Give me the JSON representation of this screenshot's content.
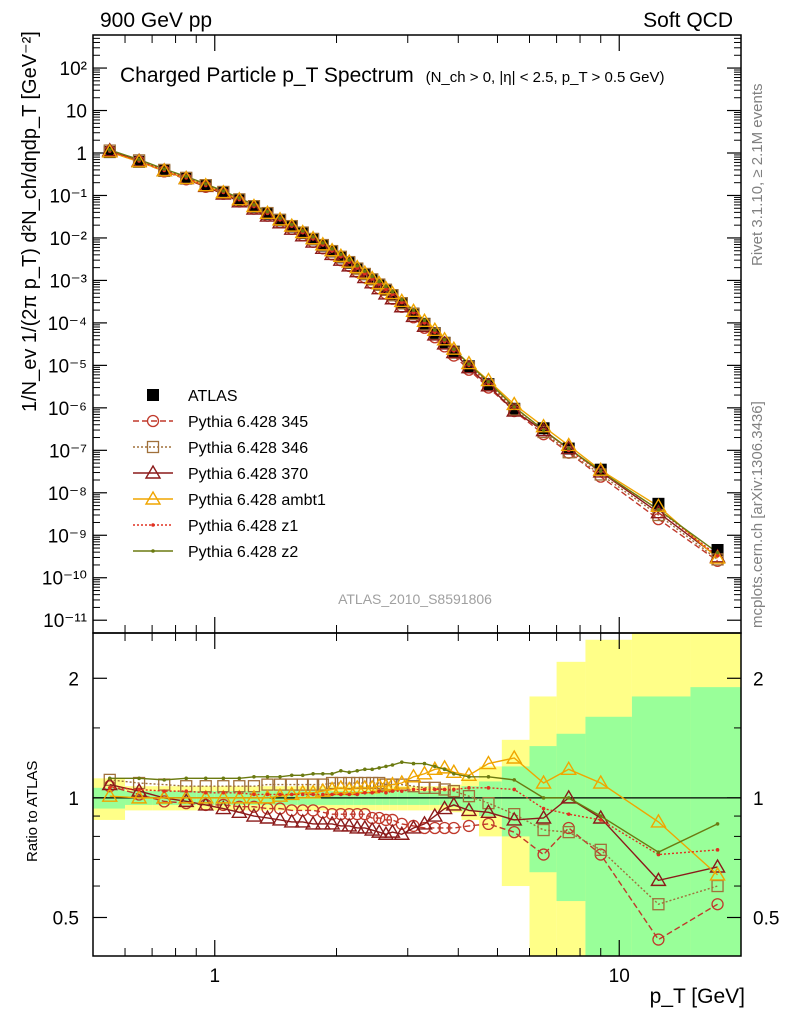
{
  "header": {
    "left": "900 GeV pp",
    "right": "Soft QCD"
  },
  "side": {
    "rivet": "Rivet 3.1.10, ≥ 2.1M events",
    "mcplots": "mcplots.cern.ch [arXiv:1306.3436]"
  },
  "analysis_tag": "ATLAS_2010_S8591806",
  "chart_data": [
    {
      "type": "scatter",
      "title": "Charged Particle p_T Spectrum",
      "subtitle": "(N_ch > 0, |η| < 2.5, p_T > 0.5 GeV)",
      "xlabel": "p_T [GeV]",
      "ylabel": "1/N_ev 1/(2π p_T) d²N_ch/dηdp_T [GeV⁻²]",
      "xscale": "log",
      "yscale": "log",
      "xlim": [
        0.5,
        20
      ],
      "ylim": [
        5e-12,
        600
      ],
      "x_tick_labels": [
        "1",
        "10"
      ],
      "y_tick_labels": [
        "10⁻¹¹",
        "10⁻¹⁰",
        "10⁻⁹",
        "10⁻⁸",
        "10⁻⁷",
        "10⁻⁶",
        "10⁻⁵",
        "10⁻⁴",
        "10⁻³",
        "10⁻²",
        "10⁻¹",
        "1",
        "10",
        "10²"
      ],
      "legend_position": "bottom-left",
      "x": [
        0.55,
        0.65,
        0.75,
        0.85,
        0.95,
        1.05,
        1.15,
        1.25,
        1.35,
        1.45,
        1.55,
        1.65,
        1.75,
        1.85,
        1.95,
        2.05,
        2.15,
        2.25,
        2.35,
        2.45,
        2.55,
        2.65,
        2.75,
        2.9,
        3.1,
        3.3,
        3.5,
        3.7,
        3.9,
        4.25,
        4.75,
        5.5,
        6.5,
        7.5,
        9.0,
        12.5,
        17.5
      ],
      "series": [
        {
          "name": "ATLAS",
          "style": "data",
          "color": "#000000",
          "values": [
            1.05,
            0.62,
            0.38,
            0.25,
            0.17,
            0.115,
            0.078,
            0.054,
            0.037,
            0.026,
            0.0185,
            0.013,
            0.0093,
            0.0066,
            0.0048,
            0.0035,
            0.0026,
            0.0019,
            0.0014,
            0.00105,
            0.00079,
            0.0006,
            0.00045,
            0.00029,
            0.000165,
            9.5e-05,
            5.7e-05,
            3.4e-05,
            2.1e-05,
            9.5e-06,
            3.6e-06,
            9.5e-07,
            3.3e-07,
            1.1e-07,
            3.5e-08,
            5.5e-09,
            4.5e-10
          ]
        },
        {
          "name": "Pythia 6.428 345",
          "style": "circle-dashed",
          "color": "#c0392b",
          "values": [
            1.1,
            0.63,
            0.37,
            0.24,
            0.16,
            0.11,
            0.072,
            0.049,
            0.0335,
            0.0233,
            0.0164,
            0.0115,
            0.0081,
            0.0057,
            0.0041,
            0.003,
            0.0022,
            0.0016,
            0.00118,
            0.00087,
            0.00065,
            0.00049,
            0.00037,
            0.00024,
            0.000136,
            7.7e-05,
            4.6e-05,
            2.8e-05,
            1.7e-05,
            7.9e-06,
            3e-06,
            8.4e-07,
            2.4e-07,
            8.8e-08,
            2.4e-08,
            2.4e-09,
            2.5e-10
          ]
        },
        {
          "name": "Pythia 6.428 346",
          "style": "square-dotted",
          "color": "#a0703a",
          "values": [
            1.14,
            0.67,
            0.4,
            0.26,
            0.175,
            0.121,
            0.081,
            0.056,
            0.0385,
            0.0268,
            0.019,
            0.0134,
            0.0095,
            0.0068,
            0.0049,
            0.0036,
            0.0027,
            0.0019,
            0.00142,
            0.00106,
            0.0008,
            0.0006,
            0.00045,
            0.00029,
            0.000163,
            9.2e-05,
            5.5e-05,
            3.3e-05,
            2e-05,
            9e-06,
            3.4e-06,
            9.1e-07,
            2.7e-07,
            9e-08,
            2.7e-08,
            3e-09,
            2.7e-10
          ]
        },
        {
          "name": "Pythia 6.428 370",
          "style": "triangle-solid",
          "color": "#8b1a1a",
          "values": [
            1.13,
            0.64,
            0.38,
            0.25,
            0.163,
            0.108,
            0.071,
            0.048,
            0.0328,
            0.0227,
            0.0161,
            0.0112,
            0.008,
            0.0057,
            0.0041,
            0.003,
            0.0022,
            0.00161,
            0.00117,
            0.00088,
            0.00064,
            0.00048,
            0.00037,
            0.00024,
            0.000142,
            8.3e-05,
            5.2e-05,
            3.2e-05,
            2e-05,
            8.8e-06,
            3.3e-06,
            8.4e-07,
            2.9e-07,
            1.1e-07,
            3.1e-08,
            3.4e-09,
            3.1e-10
          ]
        },
        {
          "name": "Pythia 6.428 ambt1",
          "style": "triangle-solid",
          "color": "#f0a500",
          "values": [
            1.06,
            0.62,
            0.38,
            0.25,
            0.17,
            0.116,
            0.079,
            0.055,
            0.038,
            0.0268,
            0.019,
            0.0134,
            0.0096,
            0.0069,
            0.005,
            0.0037,
            0.0027,
            0.002,
            0.00148,
            0.00111,
            0.00084,
            0.00064,
            0.00049,
            0.00032,
            0.000187,
            0.000109,
            6.7e-05,
            4e-05,
            2.4e-05,
            1.1e-05,
            4.4e-06,
            1.2e-06,
            3.6e-07,
            1.3e-07,
            3.4e-08,
            4.8e-09,
            2.9e-10
          ]
        },
        {
          "name": "Pythia 6.428 z1",
          "style": "dot-dotted",
          "color": "#e03020",
          "values": [
            1.11,
            0.65,
            0.39,
            0.26,
            0.172,
            0.118,
            0.08,
            0.055,
            0.038,
            0.0266,
            0.0188,
            0.0133,
            0.0095,
            0.0068,
            0.0049,
            0.0036,
            0.0027,
            0.00195,
            0.00144,
            0.00108,
            0.00082,
            0.00062,
            0.00047,
            0.0003,
            0.000173,
            0.0001,
            6e-05,
            3.6e-05,
            2.2e-05,
            1e-05,
            3.8e-06,
            1e-06,
            3.1e-07,
            1e-07,
            3.1e-08,
            4e-09,
            3.3e-10
          ]
        },
        {
          "name": "Pythia 6.428 z2",
          "style": "dot-solid",
          "color": "#6b7a10",
          "values": [
            1.18,
            0.7,
            0.42,
            0.28,
            0.187,
            0.127,
            0.087,
            0.06,
            0.0415,
            0.029,
            0.0206,
            0.0146,
            0.0105,
            0.0076,
            0.0055,
            0.0041,
            0.003,
            0.0022,
            0.00165,
            0.00124,
            0.00094,
            0.00072,
            0.00054,
            0.00035,
            0.000198,
            0.000115,
            6.8e-05,
            4e-05,
            2.4e-05,
            1.07e-05,
            4.1e-06,
            1.05e-06,
            3e-07,
            1.1e-07,
            3.2e-08,
            4e-09,
            3.9e-10
          ]
        }
      ]
    },
    {
      "type": "scatter",
      "ylabel": "Ratio to ATLAS",
      "xlabel": "p_T [GeV]",
      "xscale": "log",
      "yscale": "log",
      "xlim": [
        0.5,
        20
      ],
      "ylim": [
        0.4,
        2.6
      ],
      "y_tick_labels": [
        "0.5",
        "1",
        "2"
      ],
      "x_tick_labels": [
        "1",
        "10"
      ],
      "reference_line": 1,
      "band_inner_halfwidth": [
        0.06,
        0.04,
        0.04,
        0.04,
        0.04,
        0.04,
        0.04,
        0.04,
        0.04,
        0.04,
        0.04,
        0.04,
        0.04,
        0.04,
        0.04,
        0.04,
        0.04,
        0.04,
        0.04,
        0.04,
        0.04,
        0.04,
        0.04,
        0.04,
        0.04,
        0.04,
        0.04,
        0.04,
        0.05,
        0.07,
        0.1,
        0.2,
        0.35,
        0.45,
        0.6,
        0.8,
        0.9
      ],
      "band_outer_halfwidth": [
        0.12,
        0.07,
        0.07,
        0.07,
        0.07,
        0.07,
        0.07,
        0.07,
        0.07,
        0.07,
        0.07,
        0.07,
        0.07,
        0.07,
        0.07,
        0.07,
        0.07,
        0.07,
        0.07,
        0.07,
        0.07,
        0.07,
        0.07,
        0.07,
        0.07,
        0.07,
        0.07,
        0.07,
        0.08,
        0.12,
        0.2,
        0.4,
        0.8,
        1.2,
        1.5,
        1.7,
        1.8
      ],
      "x": [
        0.55,
        0.65,
        0.75,
        0.85,
        0.95,
        1.05,
        1.15,
        1.25,
        1.35,
        1.45,
        1.55,
        1.65,
        1.75,
        1.85,
        1.95,
        2.05,
        2.15,
        2.25,
        2.35,
        2.45,
        2.55,
        2.65,
        2.75,
        2.9,
        3.1,
        3.3,
        3.5,
        3.7,
        3.9,
        4.25,
        4.75,
        5.5,
        6.5,
        7.5,
        9.0,
        12.5,
        17.5
      ],
      "series": [
        {
          "name": "Pythia 6.428 345",
          "style": "circle-dashed",
          "color": "#c0392b",
          "values": [
            1.07,
            1.02,
            0.98,
            0.97,
            0.96,
            0.96,
            0.95,
            0.95,
            0.94,
            0.94,
            0.93,
            0.93,
            0.93,
            0.92,
            0.91,
            0.91,
            0.91,
            0.91,
            0.91,
            0.89,
            0.89,
            0.88,
            0.88,
            0.86,
            0.85,
            0.84,
            0.84,
            0.84,
            0.84,
            0.85,
            0.86,
            0.82,
            0.72,
            0.84,
            0.72,
            0.44,
            0.54
          ]
        },
        {
          "name": "Pythia 6.428 346",
          "style": "square-dotted",
          "color": "#a0703a",
          "values": [
            1.11,
            1.09,
            1.08,
            1.07,
            1.07,
            1.07,
            1.07,
            1.07,
            1.08,
            1.08,
            1.08,
            1.08,
            1.08,
            1.08,
            1.09,
            1.09,
            1.09,
            1.09,
            1.09,
            1.09,
            1.09,
            1.08,
            1.08,
            1.08,
            1.07,
            1.06,
            1.06,
            1.05,
            1.04,
            1.01,
            0.97,
            0.91,
            0.83,
            0.82,
            0.74,
            0.54,
            0.6
          ]
        },
        {
          "name": "Pythia 6.428 370",
          "style": "triangle-solid",
          "color": "#8b1a1a",
          "values": [
            1.08,
            1.04,
            1.0,
            0.98,
            0.96,
            0.94,
            0.92,
            0.9,
            0.89,
            0.88,
            0.87,
            0.87,
            0.86,
            0.86,
            0.86,
            0.85,
            0.85,
            0.84,
            0.84,
            0.83,
            0.82,
            0.81,
            0.82,
            0.81,
            0.84,
            0.86,
            0.9,
            0.94,
            0.96,
            0.93,
            0.92,
            0.88,
            0.89,
            1.0,
            0.89,
            0.62,
            0.67
          ]
        },
        {
          "name": "Pythia 6.428 ambt1",
          "style": "triangle-solid",
          "color": "#f0a500",
          "values": [
            1.01,
            1.0,
            1.0,
            1.0,
            1.0,
            1.0,
            1.0,
            1.0,
            1.0,
            1.01,
            1.02,
            1.03,
            1.03,
            1.04,
            1.05,
            1.06,
            1.05,
            1.06,
            1.06,
            1.06,
            1.07,
            1.07,
            1.08,
            1.09,
            1.13,
            1.15,
            1.18,
            1.19,
            1.16,
            1.14,
            1.22,
            1.26,
            1.09,
            1.18,
            1.09,
            0.87,
            0.64
          ]
        },
        {
          "name": "Pythia 6.428 z1",
          "style": "dot-dotted",
          "color": "#e03020",
          "values": [
            1.06,
            1.05,
            1.04,
            1.04,
            1.03,
            1.03,
            1.03,
            1.02,
            1.02,
            1.02,
            1.02,
            1.02,
            1.02,
            1.02,
            1.02,
            1.02,
            1.02,
            1.02,
            1.03,
            1.03,
            1.04,
            1.03,
            1.04,
            1.04,
            1.05,
            1.05,
            1.05,
            1.05,
            1.05,
            1.06,
            1.06,
            1.05,
            0.94,
            0.91,
            0.88,
            0.72,
            0.74
          ]
        },
        {
          "name": "Pythia 6.428 z2",
          "style": "dot-solid",
          "color": "#6b7a10",
          "values": [
            1.12,
            1.12,
            1.11,
            1.12,
            1.12,
            1.12,
            1.12,
            1.13,
            1.13,
            1.13,
            1.14,
            1.14,
            1.15,
            1.15,
            1.15,
            1.17,
            1.16,
            1.17,
            1.18,
            1.18,
            1.19,
            1.2,
            1.21,
            1.23,
            1.22,
            1.22,
            1.2,
            1.18,
            1.15,
            1.13,
            1.13,
            1.11,
            1.0,
            1.0,
            0.9,
            0.73,
            0.86
          ]
        }
      ]
    }
  ]
}
